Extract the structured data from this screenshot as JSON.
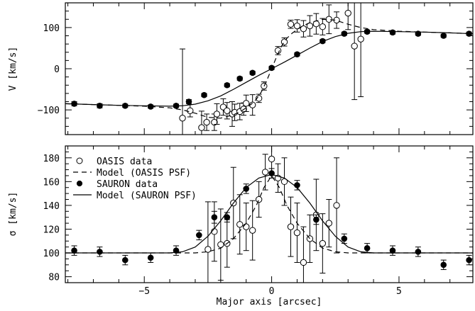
{
  "chart_data": [
    {
      "type": "scatter",
      "panel": "velocity",
      "xlabel": "",
      "ylabel": "V [km/s]",
      "xlim": [
        -8.1,
        7.9
      ],
      "ylim": [
        -160,
        160
      ],
      "yticks": [
        -100,
        0,
        100
      ],
      "ytick_labels": [
        "−100",
        "0",
        "100"
      ],
      "series": [
        {
          "name": "OASIS data",
          "marker": "open-circle",
          "x": [
            -3.5,
            -3.2,
            -2.75,
            -2.55,
            -2.25,
            -2.15,
            -1.9,
            -1.75,
            -1.55,
            -1.45,
            -1.25,
            -1.1,
            -1.0,
            -0.75,
            -0.5,
            -0.3,
            0.25,
            0.5,
            0.75,
            1.0,
            1.25,
            1.5,
            1.75,
            2.0,
            2.25,
            2.55,
            3.0,
            3.25,
            3.5
          ],
          "y": [
            -120,
            -102,
            -143,
            -130,
            -130,
            -110,
            -93,
            -102,
            -110,
            -106,
            -104,
            -98,
            -84,
            -88,
            -72,
            -42,
            44,
            65,
            108,
            104,
            97,
            104,
            109,
            102,
            120,
            118,
            135,
            55,
            72
          ],
          "err": [
            0,
            0,
            0,
            0,
            0,
            0,
            0,
            0,
            0,
            0,
            0,
            0,
            0,
            0,
            0,
            0,
            0,
            0,
            0,
            0,
            0,
            0,
            0,
            0,
            0,
            0,
            0,
            0,
            0
          ],
          "err_lo": [
            168,
            15,
            40,
            20,
            20,
            25,
            20,
            20,
            30,
            20,
            20,
            15,
            20,
            25,
            10,
            10,
            10,
            10,
            10,
            15,
            20,
            25,
            25,
            20,
            35,
            20,
            40,
            130,
            140
          ],
          "err_hi": [
            168,
            15,
            40,
            20,
            20,
            25,
            20,
            20,
            30,
            20,
            20,
            15,
            20,
            25,
            10,
            10,
            10,
            10,
            10,
            15,
            20,
            25,
            25,
            20,
            35,
            20,
            40,
            130,
            140
          ]
        },
        {
          "name": "SAURON data",
          "marker": "filled-circle",
          "x": [
            -7.75,
            -6.75,
            -5.75,
            -4.75,
            -3.75,
            -3.25,
            -2.65,
            -1.75,
            -1.25,
            -0.75,
            0.0,
            1.0,
            2.0,
            2.85,
            3.75,
            4.75,
            5.75,
            6.75,
            7.75
          ],
          "y": [
            -85,
            -90,
            -90,
            -92,
            -90,
            -80,
            -64,
            -40,
            -24,
            -10,
            2,
            35,
            67,
            85,
            90,
            88,
            85,
            80,
            85
          ],
          "err": [
            5,
            5,
            4,
            4,
            4,
            5,
            4,
            4,
            4,
            4,
            4,
            4,
            4,
            4,
            4,
            4,
            4,
            4,
            4
          ]
        },
        {
          "name": "Model (OASIS PSF)",
          "line": "dashed",
          "x": [
            -8.1,
            -7.0,
            -6.0,
            -5.0,
            -4.0,
            -3.5,
            -3.0,
            -2.5,
            -2.0,
            -1.5,
            -1.2,
            -1.0,
            -0.8,
            -0.6,
            -0.4,
            -0.2,
            0.0,
            0.2,
            0.4,
            0.6,
            0.8,
            1.0,
            1.2,
            1.5,
            2.0,
            2.5,
            3.0,
            3.5,
            4.0,
            5.0,
            6.0,
            7.0,
            7.9
          ],
          "y": [
            -85,
            -87,
            -89,
            -91,
            -95,
            -100,
            -108,
            -118,
            -120,
            -112,
            -103,
            -95,
            -86,
            -74,
            -56,
            -30,
            0,
            30,
            56,
            74,
            86,
            95,
            103,
            112,
            120,
            118,
            108,
            100,
            95,
            91,
            89,
            87,
            85
          ]
        },
        {
          "name": "Model (SAURON PSF)",
          "line": "solid",
          "x": [
            -8.1,
            -7.0,
            -6.0,
            -5.0,
            -4.0,
            -3.5,
            -3.0,
            -2.5,
            -2.0,
            -1.5,
            -1.0,
            -0.5,
            0.0,
            0.5,
            1.0,
            1.5,
            2.0,
            2.5,
            3.0,
            3.5,
            4.0,
            5.0,
            6.0,
            7.0,
            7.9
          ],
          "y": [
            -85,
            -87,
            -89,
            -90,
            -91,
            -90,
            -86,
            -78,
            -66,
            -50,
            -33,
            -16,
            0,
            16,
            33,
            50,
            66,
            78,
            86,
            90,
            91,
            90,
            89,
            87,
            85
          ]
        }
      ]
    },
    {
      "type": "scatter",
      "panel": "dispersion",
      "xlabel": "Major axis [arcsec]",
      "ylabel": "σ [km/s]",
      "xlim": [
        -8.1,
        7.9
      ],
      "ylim": [
        75,
        190
      ],
      "xticks": [
        -5,
        0,
        5
      ],
      "xtick_labels": [
        "−5",
        "0",
        "5"
      ],
      "yticks": [
        80,
        100,
        120,
        140,
        160,
        180
      ],
      "ytick_labels": [
        "80",
        "100",
        "120",
        "140",
        "160",
        "180"
      ],
      "legend": {
        "placement": "top-left",
        "entries": [
          {
            "label": "OASIS data",
            "marker": "open-circle"
          },
          {
            "label": "Model (OASIS PSF)",
            "line": "dashed"
          },
          {
            "label": "SAURON data",
            "marker": "filled-circle"
          },
          {
            "label": "Model (SAURON PSF)",
            "line": "solid"
          }
        ]
      },
      "series": [
        {
          "name": "OASIS data",
          "marker": "open-circle",
          "x": [
            -2.5,
            -2.25,
            -2.0,
            -1.75,
            -1.5,
            -1.25,
            -1.0,
            -0.75,
            -0.5,
            -0.25,
            0.0,
            0.25,
            0.5,
            0.75,
            1.0,
            1.25,
            1.5,
            1.75,
            2.0,
            2.25,
            2.55
          ],
          "y": [
            103,
            118,
            107,
            108,
            142,
            124,
            122,
            119,
            145,
            168,
            179,
            163,
            160,
            122,
            117,
            92,
            112,
            132,
            108,
            125,
            140
          ],
          "err_lo": [
            40,
            25,
            30,
            20,
            30,
            25,
            20,
            25,
            15,
            15,
            12,
            12,
            20,
            25,
            25,
            30,
            20,
            30,
            25,
            20,
            40
          ],
          "err_hi": [
            40,
            25,
            30,
            20,
            30,
            25,
            20,
            25,
            15,
            15,
            12,
            12,
            20,
            25,
            25,
            30,
            20,
            30,
            25,
            20,
            40
          ]
        },
        {
          "name": "SAURON data",
          "marker": "filled-circle",
          "x": [
            -7.75,
            -6.75,
            -5.75,
            -4.75,
            -3.75,
            -2.85,
            -2.25,
            -1.75,
            -1.0,
            0.0,
            1.0,
            1.75,
            2.85,
            3.75,
            4.75,
            5.75,
            6.75,
            7.75
          ],
          "y": [
            102,
            101,
            94,
            96,
            102,
            115,
            130,
            130,
            154,
            167,
            157,
            128,
            112,
            104,
            102,
            101,
            90,
            94
          ],
          "err_lo": [
            4,
            4,
            4,
            4,
            4,
            4,
            5,
            4,
            4,
            4,
            4,
            4,
            4,
            4,
            4,
            4,
            4,
            4
          ],
          "err_hi": [
            4,
            4,
            4,
            4,
            4,
            4,
            5,
            4,
            4,
            4,
            4,
            4,
            4,
            4,
            4,
            4,
            4,
            4
          ]
        },
        {
          "name": "Model (OASIS PSF)",
          "line": "dashed",
          "x": [
            -8.1,
            -3.0,
            -2.5,
            -2.0,
            -1.5,
            -1.0,
            -0.6,
            -0.3,
            0.0,
            0.3,
            0.6,
            1.0,
            1.5,
            2.0,
            2.5,
            3.0,
            7.9
          ],
          "y": [
            100,
            100,
            101,
            104,
            112,
            125,
            140,
            155,
            165,
            155,
            140,
            125,
            112,
            104,
            101,
            100,
            100
          ]
        },
        {
          "name": "Model (SAURON PSF)",
          "line": "solid",
          "x": [
            -8.1,
            -4.0,
            -3.5,
            -3.0,
            -2.5,
            -2.0,
            -1.5,
            -1.0,
            -0.5,
            0.0,
            0.5,
            1.0,
            1.5,
            2.0,
            2.5,
            3.0,
            3.5,
            4.0,
            7.9
          ],
          "y": [
            100,
            100,
            101,
            105,
            114,
            127,
            142,
            155,
            163,
            166,
            163,
            155,
            142,
            127,
            114,
            105,
            101,
            100,
            100
          ]
        }
      ]
    }
  ]
}
